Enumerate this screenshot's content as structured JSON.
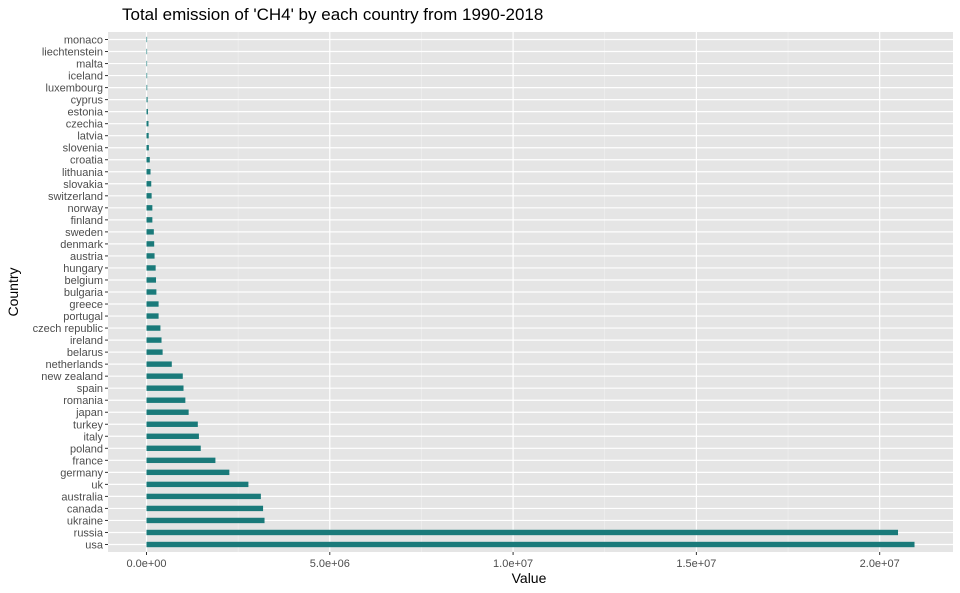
{
  "chart_data": {
    "type": "bar",
    "orientation": "horizontal",
    "title": "Total emission of 'CH4' by each country from 1990-2018",
    "xlabel": "Value",
    "ylabel": "Country",
    "xlim": [
      -1050000,
      22000000
    ],
    "xticks": [
      0,
      5000000,
      10000000,
      15000000,
      20000000
    ],
    "xtick_labels": [
      "0.0e+00",
      "5.0e+06",
      "1.0e+07",
      "1.5e+07",
      "2.0e+07"
    ],
    "grid": true,
    "legend": "none",
    "bar_color": "#1a7a7a",
    "panel_color": "#e5e5e5",
    "categories": [
      "usa",
      "russia",
      "ukraine",
      "canada",
      "australia",
      "uk",
      "germany",
      "france",
      "poland",
      "italy",
      "turkey",
      "japan",
      "romania",
      "spain",
      "new zealand",
      "netherlands",
      "belarus",
      "ireland",
      "czech republic",
      "portugal",
      "greece",
      "bulgaria",
      "belgium",
      "hungary",
      "austria",
      "denmark",
      "sweden",
      "finland",
      "norway",
      "switzerland",
      "slovakia",
      "lithuania",
      "croatia",
      "slovenia",
      "latvia",
      "czechia",
      "estonia",
      "cyprus",
      "luxembourg",
      "iceland",
      "malta",
      "liechtenstein",
      "monaco"
    ],
    "values": [
      20950000,
      20500000,
      3220000,
      3180000,
      3120000,
      2780000,
      2260000,
      1880000,
      1480000,
      1430000,
      1400000,
      1150000,
      1060000,
      1010000,
      990000,
      690000,
      440000,
      410000,
      380000,
      330000,
      330000,
      270000,
      260000,
      250000,
      220000,
      210000,
      200000,
      160000,
      160000,
      140000,
      130000,
      110000,
      90000,
      65000,
      60000,
      55000,
      40000,
      30000,
      20000,
      18000,
      8000,
      1500,
      500
    ]
  }
}
